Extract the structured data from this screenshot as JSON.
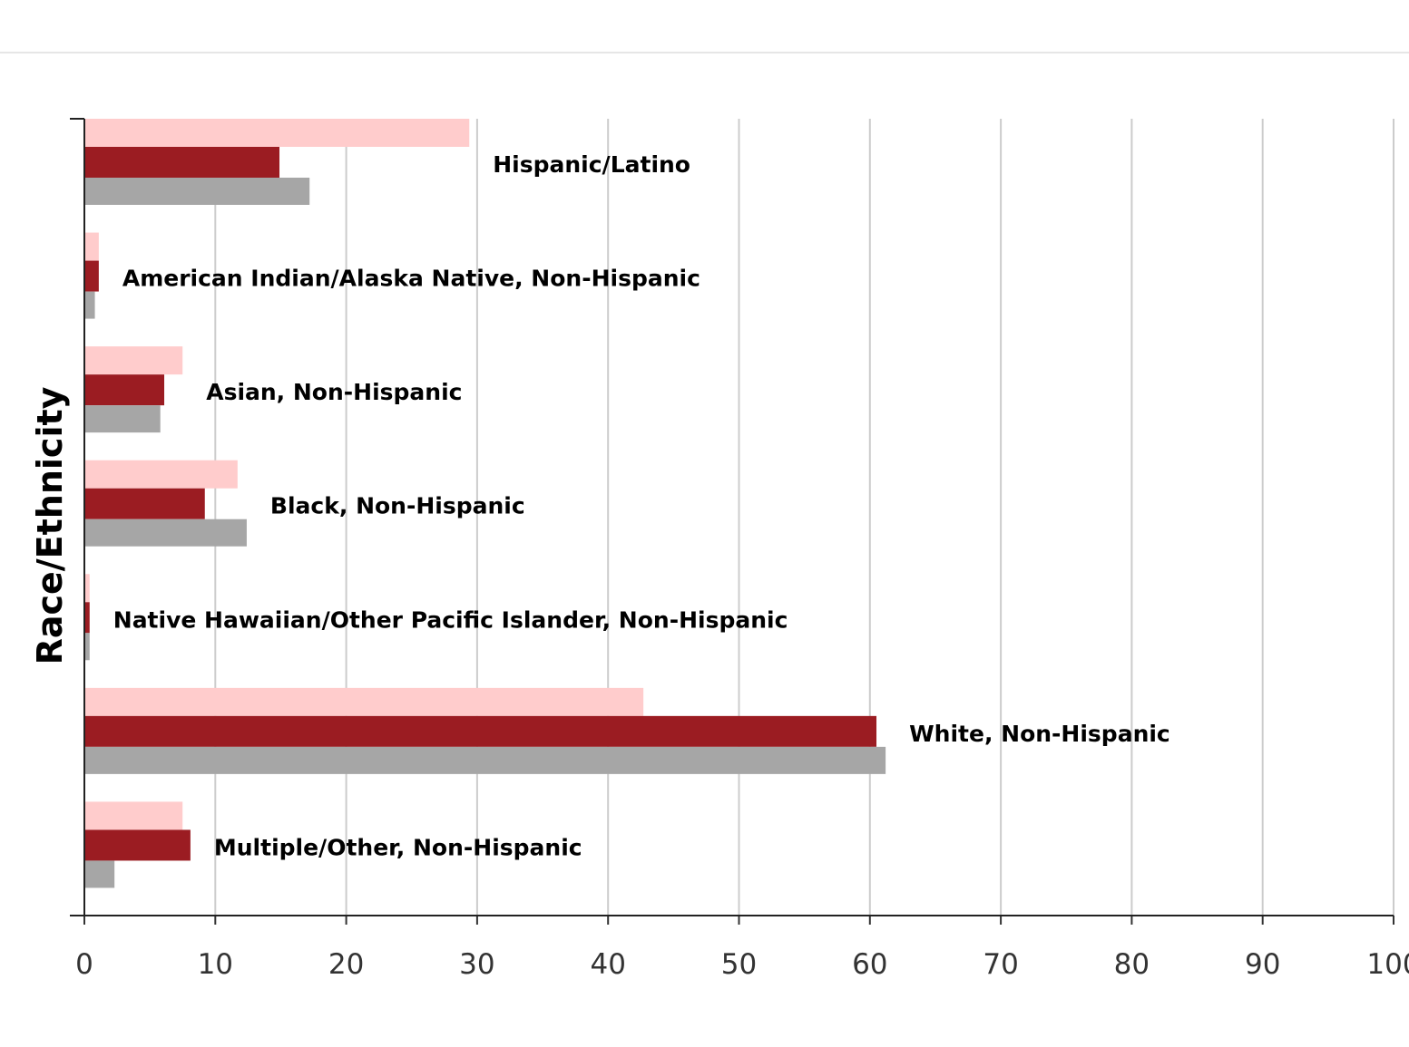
{
  "chart_data": {
    "type": "bar",
    "orientation": "horizontal",
    "ylabel": "Race/Ethnicity",
    "xlabel": "",
    "xlim": [
      0,
      100
    ],
    "xticks": [
      "0",
      "10",
      "20",
      "30",
      "40",
      "50",
      "60",
      "70",
      "80",
      "90",
      "100"
    ],
    "grid": true,
    "colors": [
      "#ffcccc",
      "#9b1c22",
      "#a6a6a6"
    ],
    "categories": [
      "Hispanic/Latino",
      "American Indian/Alaska Native, Non-Hispanic",
      "Asian, Non-Hispanic",
      "Black, Non-Hispanic",
      "Native Hawaiian/Other Pacific Islander, Non-Hispanic",
      "White, Non-Hispanic",
      "Multiple/Other, Non-Hispanic"
    ],
    "series": [
      {
        "values": [
          29.4,
          1.1,
          7.5,
          11.7,
          0.4,
          42.7,
          7.5
        ]
      },
      {
        "values": [
          14.9,
          1.1,
          6.1,
          9.2,
          0.4,
          60.5,
          8.1
        ]
      },
      {
        "values": [
          17.2,
          0.8,
          5.8,
          12.4,
          0.4,
          61.2,
          2.3
        ]
      }
    ]
  }
}
